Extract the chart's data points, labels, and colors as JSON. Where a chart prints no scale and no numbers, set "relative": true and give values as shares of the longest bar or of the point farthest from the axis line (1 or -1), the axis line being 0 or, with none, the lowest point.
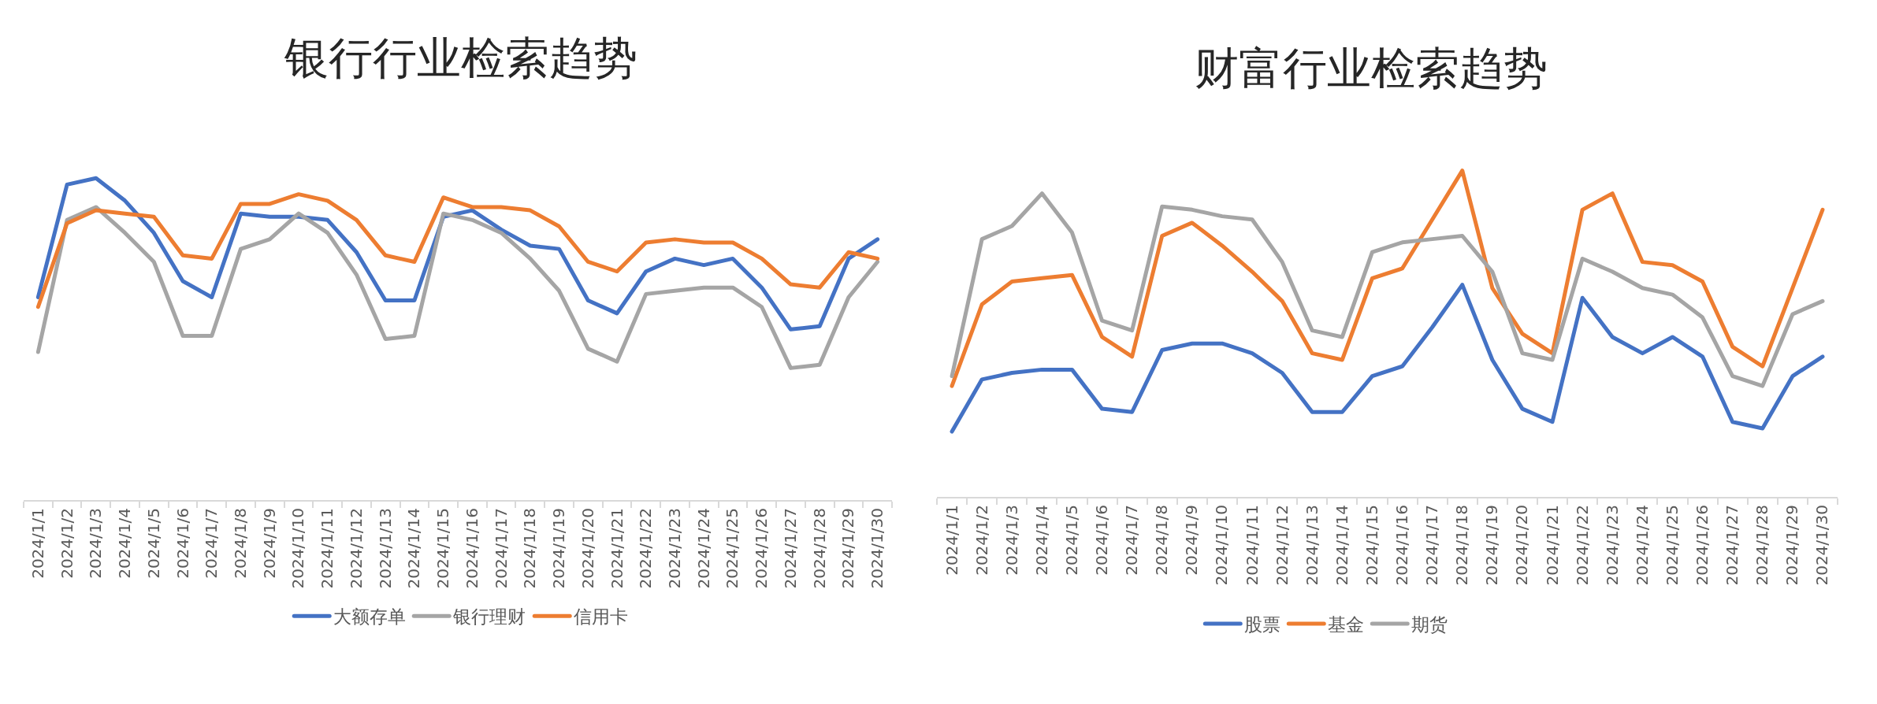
{
  "chart_data": [
    {
      "type": "line",
      "title": "银行行业检索趋势",
      "relative": true,
      "legend": "bottom",
      "line_style": "solid",
      "categories": [
        "2024/1/1",
        "2024/1/2",
        "2024/1/3",
        "2024/1/4",
        "2024/1/5",
        "2024/1/6",
        "2024/1/7",
        "2024/1/8",
        "2024/1/9",
        "2024/1/10",
        "2024/1/11",
        "2024/1/12",
        "2024/1/13",
        "2024/1/14",
        "2024/1/15",
        "2024/1/16",
        "2024/1/17",
        "2024/1/18",
        "2024/1/19",
        "2024/1/20",
        "2024/1/21",
        "2024/1/22",
        "2024/1/23",
        "2024/1/24",
        "2024/1/25",
        "2024/1/26",
        "2024/1/27",
        "2024/1/28",
        "2024/1/29",
        "2024/1/30"
      ],
      "series": [
        {
          "name": "大额存单",
          "color": "#4472c4",
          "values": [
            0.63,
            0.98,
            1.0,
            0.93,
            0.83,
            0.68,
            0.63,
            0.89,
            0.88,
            0.88,
            0.87,
            0.77,
            0.62,
            0.62,
            0.88,
            0.9,
            0.84,
            0.79,
            0.78,
            0.62,
            0.58,
            0.71,
            0.75,
            0.73,
            0.75,
            0.66,
            0.53,
            0.54,
            0.75,
            0.81
          ]
        },
        {
          "name": "银行理财",
          "color": "#a5a5a5",
          "values": [
            0.46,
            0.87,
            0.91,
            0.83,
            0.74,
            0.51,
            0.51,
            0.78,
            0.81,
            0.89,
            0.83,
            0.7,
            0.5,
            0.51,
            0.89,
            0.87,
            0.83,
            0.75,
            0.65,
            0.47,
            0.43,
            0.64,
            0.65,
            0.66,
            0.66,
            0.6,
            0.41,
            0.42,
            0.63,
            0.74
          ]
        },
        {
          "name": "信用卡",
          "color": "#ed7d31",
          "values": [
            0.6,
            0.86,
            0.9,
            0.89,
            0.88,
            0.76,
            0.75,
            0.92,
            0.92,
            0.95,
            0.93,
            0.87,
            0.76,
            0.74,
            0.94,
            0.91,
            0.91,
            0.9,
            0.85,
            0.74,
            0.71,
            0.8,
            0.81,
            0.8,
            0.8,
            0.75,
            0.67,
            0.66,
            0.77,
            0.75
          ]
        }
      ]
    },
    {
      "type": "line",
      "title": "财富行业检索趋势",
      "relative": true,
      "legend": "bottom",
      "line_style": "solid",
      "categories": [
        "2024/1/1",
        "2024/1/2",
        "2024/1/3",
        "2024/1/4",
        "2024/1/5",
        "2024/1/6",
        "2024/1/7",
        "2024/1/8",
        "2024/1/9",
        "2024/1/10",
        "2024/1/11",
        "2024/1/12",
        "2024/1/13",
        "2024/1/14",
        "2024/1/15",
        "2024/1/16",
        "2024/1/17",
        "2024/1/18",
        "2024/1/19",
        "2024/1/20",
        "2024/1/21",
        "2024/1/22",
        "2024/1/23",
        "2024/1/24",
        "2024/1/25",
        "2024/1/26",
        "2024/1/27",
        "2024/1/28",
        "2024/1/29",
        "2024/1/30"
      ],
      "series": [
        {
          "name": "股票",
          "color": "#4472c4",
          "values": [
            0.2,
            0.36,
            0.38,
            0.39,
            0.39,
            0.27,
            0.26,
            0.45,
            0.47,
            0.47,
            0.44,
            0.38,
            0.26,
            0.26,
            0.37,
            0.4,
            0.52,
            0.65,
            0.42,
            0.27,
            0.23,
            0.61,
            0.49,
            0.44,
            0.49,
            0.43,
            0.23,
            0.21,
            0.37,
            0.43
          ]
        },
        {
          "name": "基金",
          "color": "#ed7d31",
          "values": [
            0.34,
            0.59,
            0.66,
            0.67,
            0.68,
            0.49,
            0.43,
            0.8,
            0.84,
            0.77,
            0.69,
            0.6,
            0.44,
            0.42,
            0.67,
            0.7,
            0.85,
            1.0,
            0.64,
            0.5,
            0.44,
            0.88,
            0.93,
            0.72,
            0.71,
            0.66,
            0.46,
            0.4,
            0.64,
            0.88
          ]
        },
        {
          "name": "期货",
          "color": "#a5a5a5",
          "values": [
            0.37,
            0.79,
            0.83,
            0.93,
            0.81,
            0.54,
            0.51,
            0.89,
            0.88,
            0.86,
            0.85,
            0.72,
            0.51,
            0.49,
            0.75,
            0.78,
            0.79,
            0.8,
            0.69,
            0.44,
            0.42,
            0.73,
            0.69,
            0.64,
            0.62,
            0.55,
            0.37,
            0.34,
            0.56,
            0.6
          ]
        }
      ]
    }
  ]
}
